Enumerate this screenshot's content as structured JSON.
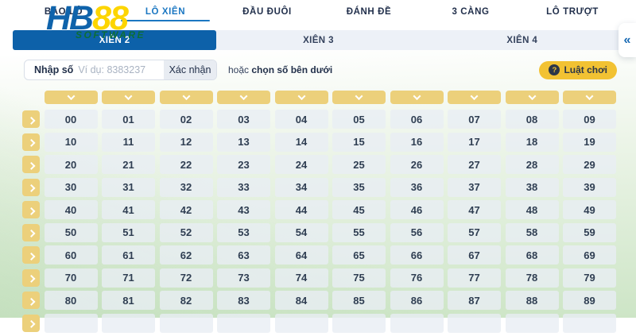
{
  "nav": {
    "items": [
      {
        "id": "bao-lo",
        "label": "BAO LÔ",
        "active": false
      },
      {
        "id": "lo-xien",
        "label": "LÔ XIÊN",
        "active": true
      },
      {
        "id": "dau-duoi",
        "label": "ĐẦU ĐUÔI",
        "active": false
      },
      {
        "id": "danh-de",
        "label": "ĐÁNH ĐỀ",
        "active": false
      },
      {
        "id": "3-cang",
        "label": "3 CÀNG",
        "active": false
      },
      {
        "id": "lo-truot",
        "label": "LÔ TRƯỢT",
        "active": false
      }
    ]
  },
  "logo": {
    "part_hb": "HB",
    "part_88": "88",
    "subtitle": "SOFTWARE"
  },
  "sub_tabs": {
    "items": [
      {
        "id": "xien-2",
        "label": "XIÊN 2",
        "selected": true
      },
      {
        "id": "xien-3",
        "label": "XIÊN 3",
        "selected": false
      },
      {
        "id": "xien-4",
        "label": "XIÊN 4",
        "selected": false
      }
    ]
  },
  "collapse_button": {
    "glyph": "«"
  },
  "toolbar": {
    "input_label": "Nhập số",
    "input_placeholder": "Ví dụ: 8383237",
    "confirm_label": "Xác nhận",
    "hint_prefix": "hoặc ",
    "hint_bold": "chọn số bên dưới",
    "rules_icon": "?",
    "rules_label": "Luật chơi"
  },
  "grid": {
    "column_header_icon": "chevron-down-icon",
    "row_button_icon": "chevron-right-icon",
    "rows": [
      {
        "values": [
          "00",
          "01",
          "02",
          "03",
          "04",
          "05",
          "06",
          "07",
          "08",
          "09"
        ]
      },
      {
        "values": [
          "10",
          "11",
          "12",
          "13",
          "14",
          "15",
          "16",
          "17",
          "18",
          "19"
        ]
      },
      {
        "values": [
          "20",
          "21",
          "22",
          "23",
          "24",
          "25",
          "26",
          "27",
          "28",
          "29"
        ]
      },
      {
        "values": [
          "30",
          "31",
          "32",
          "33",
          "34",
          "35",
          "36",
          "37",
          "38",
          "39"
        ]
      },
      {
        "values": [
          "40",
          "41",
          "42",
          "43",
          "44",
          "45",
          "46",
          "47",
          "48",
          "49"
        ]
      },
      {
        "values": [
          "50",
          "51",
          "52",
          "53",
          "54",
          "55",
          "56",
          "57",
          "58",
          "59"
        ]
      },
      {
        "values": [
          "60",
          "61",
          "62",
          "63",
          "64",
          "65",
          "66",
          "67",
          "68",
          "69"
        ]
      },
      {
        "values": [
          "70",
          "71",
          "72",
          "73",
          "74",
          "75",
          "76",
          "77",
          "78",
          "79"
        ]
      },
      {
        "values": [
          "80",
          "81",
          "82",
          "83",
          "84",
          "85",
          "86",
          "87",
          "88",
          "89"
        ]
      }
    ],
    "partial_bottom_row": true
  },
  "colors": {
    "accent_blue": "#0d61a9",
    "active_link_blue": "#1b77c2",
    "button_gold": "#ecd07b",
    "rules_yellow": "#f2c233",
    "logo_yellow": "#fdd500",
    "logo_green": "#0c6e36",
    "navy_text": "#22304c",
    "cell_bg": "#e9eef4",
    "page_green": "#cde5c6"
  }
}
